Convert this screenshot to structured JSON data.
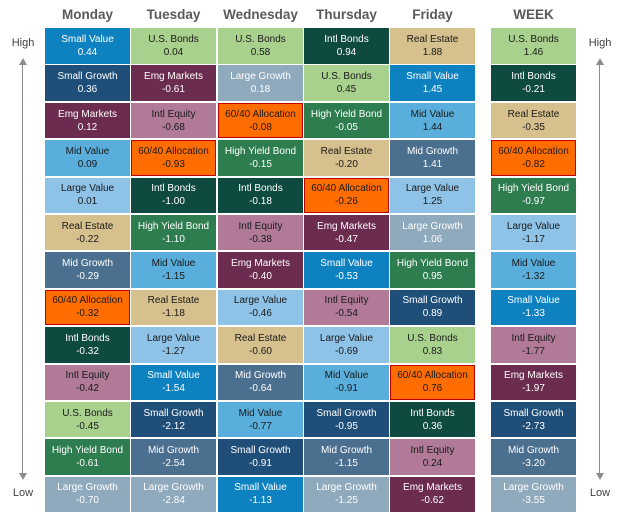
{
  "side_labels": {
    "top": "High",
    "bottom": "Low"
  },
  "columns": [
    {
      "header": "Monday",
      "cells": [
        {
          "label": "Small Value",
          "value": "0.44"
        },
        {
          "label": "Small Growth",
          "value": "0.36"
        },
        {
          "label": "Emg Markets",
          "value": "0.12"
        },
        {
          "label": "Mid Value",
          "value": "0.09"
        },
        {
          "label": "Large Value",
          "value": "0.01"
        },
        {
          "label": "Real Estate",
          "value": "-0.22"
        },
        {
          "label": "Mid Growth",
          "value": "-0.29"
        },
        {
          "label": "60/40 Allocation",
          "value": "-0.32"
        },
        {
          "label": "Intl Bonds",
          "value": "-0.32"
        },
        {
          "label": "Intl Equity",
          "value": "-0.42"
        },
        {
          "label": "U.S. Bonds",
          "value": "-0.45"
        },
        {
          "label": "High Yield Bond",
          "value": "-0.61"
        },
        {
          "label": "Large Growth",
          "value": "-0.70"
        }
      ]
    },
    {
      "header": "Tuesday",
      "cells": [
        {
          "label": "U.S. Bonds",
          "value": "0.04"
        },
        {
          "label": "Emg Markets",
          "value": "-0.61"
        },
        {
          "label": "Intl Equity",
          "value": "-0.68"
        },
        {
          "label": "60/40 Allocation",
          "value": "-0.93"
        },
        {
          "label": "Intl Bonds",
          "value": "-1.00"
        },
        {
          "label": "High Yield Bond",
          "value": "-1.10"
        },
        {
          "label": "Mid Value",
          "value": "-1.15"
        },
        {
          "label": "Real Estate",
          "value": "-1.18"
        },
        {
          "label": "Large Value",
          "value": "-1.27"
        },
        {
          "label": "Small Value",
          "value": "-1.54"
        },
        {
          "label": "Small Growth",
          "value": "-2.12"
        },
        {
          "label": "Mid Growth",
          "value": "-2.54"
        },
        {
          "label": "Large Growth",
          "value": "-2.84"
        }
      ]
    },
    {
      "header": "Wednesday",
      "cells": [
        {
          "label": "U.S. Bonds",
          "value": "0.58"
        },
        {
          "label": "Large Growth",
          "value": "0.18"
        },
        {
          "label": "60/40 Allocation",
          "value": "-0.08"
        },
        {
          "label": "High Yield Bond",
          "value": "-0.15"
        },
        {
          "label": "Intl Bonds",
          "value": "-0.18"
        },
        {
          "label": "Intl Equity",
          "value": "-0.38"
        },
        {
          "label": "Emg Markets",
          "value": "-0.40"
        },
        {
          "label": "Large Value",
          "value": "-0.46"
        },
        {
          "label": "Real Estate",
          "value": "-0.60"
        },
        {
          "label": "Mid Growth",
          "value": "-0.64"
        },
        {
          "label": "Mid Value",
          "value": "-0.77"
        },
        {
          "label": "Small Growth",
          "value": "-0.91"
        },
        {
          "label": "Small Value",
          "value": "-1.13"
        }
      ]
    },
    {
      "header": "Thursday",
      "cells": [
        {
          "label": "Intl Bonds",
          "value": "0.94"
        },
        {
          "label": "U.S. Bonds",
          "value": "0.45"
        },
        {
          "label": "High Yield Bond",
          "value": "-0.05"
        },
        {
          "label": "Real Estate",
          "value": "-0.20"
        },
        {
          "label": "60/40 Allocation",
          "value": "-0.26"
        },
        {
          "label": "Emg Markets",
          "value": "-0.47"
        },
        {
          "label": "Small Value",
          "value": "-0.53"
        },
        {
          "label": "Intl Equity",
          "value": "-0.54"
        },
        {
          "label": "Large Value",
          "value": "-0.69"
        },
        {
          "label": "Mid Value",
          "value": "-0.91"
        },
        {
          "label": "Small Growth",
          "value": "-0.95"
        },
        {
          "label": "Mid Growth",
          "value": "-1.15"
        },
        {
          "label": "Large Growth",
          "value": "-1.25"
        }
      ]
    },
    {
      "header": "Friday",
      "cells": [
        {
          "label": "Real Estate",
          "value": "1.88"
        },
        {
          "label": "Small Value",
          "value": "1.45"
        },
        {
          "label": "Mid Value",
          "value": "1.44"
        },
        {
          "label": "Mid Growth",
          "value": "1.41"
        },
        {
          "label": "Large Value",
          "value": "1.25"
        },
        {
          "label": "Large Growth",
          "value": "1.06"
        },
        {
          "label": "High Yield Bond",
          "value": "0.95"
        },
        {
          "label": "Small Growth",
          "value": "0.89"
        },
        {
          "label": "U.S. Bonds",
          "value": "0.83"
        },
        {
          "label": "60/40 Allocation",
          "value": "0.76"
        },
        {
          "label": "Intl Bonds",
          "value": "0.36"
        },
        {
          "label": "Intl Equity",
          "value": "0.24"
        },
        {
          "label": "Emg Markets",
          "value": "-0.62"
        }
      ]
    },
    {
      "header": "WEEK",
      "cells": [
        {
          "label": "U.S. Bonds",
          "value": "1.46"
        },
        {
          "label": "Intl Bonds",
          "value": "-0.21"
        },
        {
          "label": "Real Estate",
          "value": "-0.35"
        },
        {
          "label": "60/40 Allocation",
          "value": "-0.82"
        },
        {
          "label": "High Yield Bond",
          "value": "-0.97"
        },
        {
          "label": "Large Value",
          "value": "-1.17"
        },
        {
          "label": "Mid Value",
          "value": "-1.32"
        },
        {
          "label": "Small Value",
          "value": "-1.33"
        },
        {
          "label": "Intl Equity",
          "value": "-1.77"
        },
        {
          "label": "Emg Markets",
          "value": "-1.97"
        },
        {
          "label": "Small Growth",
          "value": "-2.73"
        },
        {
          "label": "Mid Growth",
          "value": "-3.20"
        },
        {
          "label": "Large Growth",
          "value": "-3.55"
        }
      ]
    }
  ],
  "asset_colors": {
    "Small Value": {
      "bg": "#0e82c0",
      "fg": "#ffffff"
    },
    "Small Growth": {
      "bg": "#1f4e79",
      "fg": "#ffffff"
    },
    "Mid Value": {
      "bg": "#5aaedb",
      "fg": "#1a1a1a"
    },
    "Mid Growth": {
      "bg": "#4a6f8f",
      "fg": "#ffffff"
    },
    "Large Value": {
      "bg": "#8ec2e6",
      "fg": "#1a1a1a"
    },
    "Large Growth": {
      "bg": "#8fa9bd",
      "fg": "#ffffff"
    },
    "Emg Markets": {
      "bg": "#6b2c4f",
      "fg": "#ffffff"
    },
    "Intl Equity": {
      "bg": "#b07a98",
      "fg": "#1a1a1a"
    },
    "U.S. Bonds": {
      "bg": "#a9d18e",
      "fg": "#1a1a1a"
    },
    "Intl Bonds": {
      "bg": "#0e4a3f",
      "fg": "#ffffff"
    },
    "High Yield Bond": {
      "bg": "#2e7d4f",
      "fg": "#ffffff"
    },
    "Real Estate": {
      "bg": "#d6c08d",
      "fg": "#1a1a1a"
    },
    "60/40 Allocation": {
      "bg": "#ff6d00",
      "fg": "#1a1a1a"
    }
  },
  "highlight_asset": "60/40 Allocation",
  "header_color": "#595959"
}
